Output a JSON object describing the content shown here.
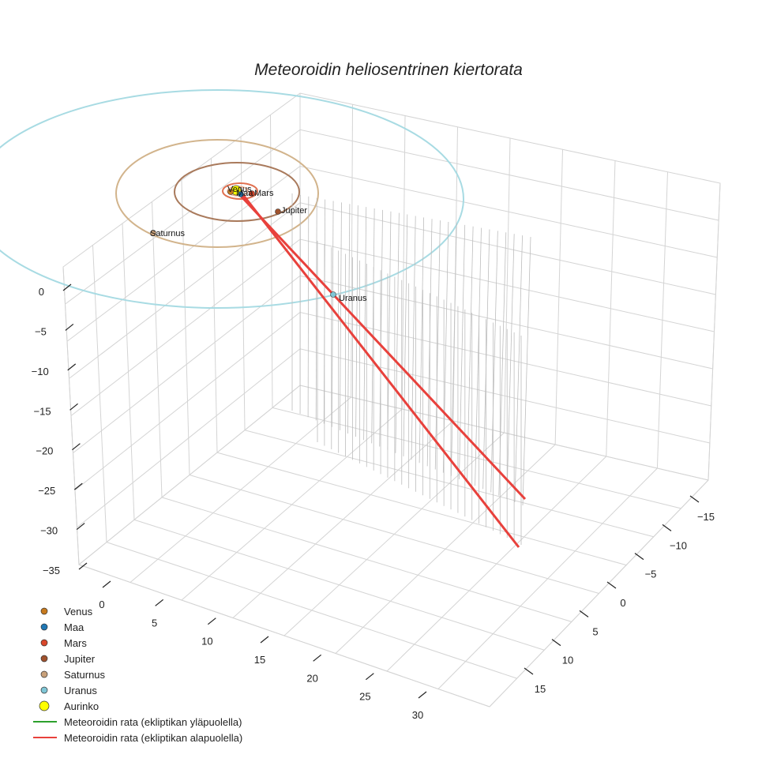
{
  "chart_data": {
    "type": "scatter3d",
    "title": "Meteoroidin heliosentrinen kiertorata",
    "axes": {
      "x": {
        "ticks": [
          "0",
          "5",
          "10",
          "15",
          "20",
          "25",
          "30"
        ]
      },
      "y": {
        "ticks": [
          "−15",
          "−10",
          "−5",
          "0",
          "5",
          "10",
          "15"
        ]
      },
      "z": {
        "ticks": [
          "0",
          "−5",
          "−10",
          "−15",
          "−20",
          "−25",
          "−30",
          "−35"
        ]
      }
    },
    "planets": [
      {
        "name": "Venus",
        "color": "#c77a1e"
      },
      {
        "name": "Maa",
        "color": "#1f77b4"
      },
      {
        "name": "Mars",
        "color": "#d9472b"
      },
      {
        "name": "Jupiter",
        "color": "#a0522d"
      },
      {
        "name": "Saturnus",
        "color": "#c8a07a"
      },
      {
        "name": "Uranus",
        "color": "#7fc6d6"
      }
    ],
    "sun": {
      "name": "Aurinko",
      "color": "#ffff00"
    },
    "orbits": [
      {
        "name": "Mars",
        "color": "#e07050"
      },
      {
        "name": "Jupiter",
        "color": "#a97a5c"
      },
      {
        "name": "Saturnus",
        "color": "#d2b48c"
      },
      {
        "name": "Uranus",
        "color": "#a8dbe3"
      }
    ],
    "legend": [
      {
        "label": "Venus",
        "type": "marker",
        "color": "#c77a1e"
      },
      {
        "label": "Maa",
        "type": "marker",
        "color": "#1f77b4"
      },
      {
        "label": "Mars",
        "type": "marker",
        "color": "#d9472b"
      },
      {
        "label": "Jupiter",
        "type": "marker",
        "color": "#a0522d"
      },
      {
        "label": "Saturnus",
        "type": "marker",
        "color": "#c8a07a"
      },
      {
        "label": "Uranus",
        "type": "marker",
        "color": "#7fc6d6"
      },
      {
        "label": "Aurinko",
        "type": "marker",
        "color": "#ffff00"
      },
      {
        "label": "Meteoroidin rata (ekliptikan yläpuolella)",
        "type": "line",
        "color": "#2ca02c"
      },
      {
        "label": "Meteoroidin rata (ekliptikan alapuolella)",
        "type": "line",
        "color": "#e8413c"
      }
    ],
    "legend_position": "bottom-left",
    "grid": true,
    "trajectory_color": "#e8413c"
  }
}
